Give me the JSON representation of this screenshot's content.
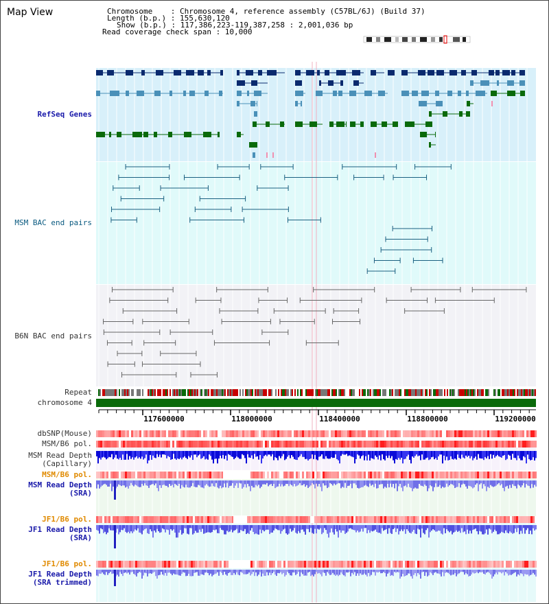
{
  "header": {
    "title": "Map View",
    "lines": [
      "Chromosome    : Chromosome 4, reference assembly (C57BL/6J) (Build 37)",
      "Length (b.p.) : 155,630,120",
      "Show (b.p.) : 117,386,223-119,387,258 : 2,001,036 bp",
      "Read coverage check span : 10,000"
    ]
  },
  "tracks": {
    "refseq": "RefSeq Genes",
    "msm_bac": "MSM BAC end pairs",
    "b6n_bac": "B6N BAC end pairs",
    "repeat": "Repeat",
    "chromosome": "chromosome 4",
    "dbsnp": "dbSNP(Mouse)",
    "msm_b6_pol": "MSM/B6 pol.",
    "msm_depth_cap_1": "MSM Read Depth",
    "msm_depth_cap_2": "(Capillary)",
    "msm_b6_pol2": "MSM/B6 pol.",
    "msm_depth_sra_1": "MSM Read Depth",
    "msm_depth_sra_2": "(SRA)",
    "jf1_b6_pol": "JF1/B6 pol.",
    "jf1_depth_sra_1": "JF1 Read Depth",
    "jf1_depth_sra_2": "(SRA)",
    "jf1_b6_pol2": "JF1/B6 pol.",
    "jf1_depth_trim_1": "JF1 Read Depth",
    "jf1_depth_trim_2": "(SRA trimmed)"
  },
  "axis": {
    "ticks": [
      "117600000",
      "118000000",
      "118400000",
      "118800000",
      "119200000"
    ]
  },
  "colors": {
    "refseq_dark": "#0a2a6e",
    "refseq_light": "#4a90b8",
    "refseq_green": "#0a6a0a",
    "msm_bg": "#e0fafa",
    "msm_line": "#1a5f80",
    "b6n_line": "#666666",
    "chrom_green": "#0a6a0a",
    "depth_blue": "#2020e0",
    "depth_light": "#8080f0"
  }
}
